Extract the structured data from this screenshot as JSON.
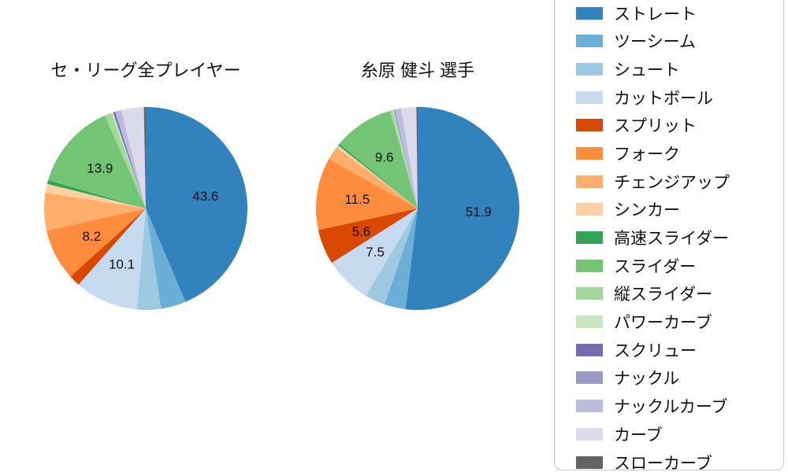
{
  "page": {
    "background": "#ffffff"
  },
  "chart_data": [
    {
      "type": "pie",
      "title": "セ・リーグ全プレイヤー",
      "start_angle_deg": 90,
      "direction": "clockwise",
      "pct_distance": 0.6,
      "categories": [
        "ストレート",
        "ツーシーム",
        "シュート",
        "カットボール",
        "スプリット",
        "フォーク",
        "チェンジアップ",
        "シンカー",
        "高速スライダー",
        "スライダー",
        "縦スライダー",
        "パワーカーブ",
        "スクリュー",
        "ナックル",
        "ナックルカーブ",
        "カーブ",
        "スローカーブ"
      ],
      "values": [
        43.6,
        4.0,
        3.8,
        10.1,
        1.8,
        8.2,
        6.0,
        1.4,
        0.6,
        13.9,
        1.1,
        0.3,
        0.3,
        0.1,
        0.9,
        3.6,
        0.3
      ],
      "value_labels": [
        "43.6",
        null,
        null,
        "10.1",
        null,
        "8.2",
        null,
        null,
        null,
        "13.9",
        null,
        null,
        null,
        null,
        null,
        null,
        null
      ]
    },
    {
      "type": "pie",
      "title": "糸原 健斗 選手",
      "start_angle_deg": 90,
      "direction": "clockwise",
      "pct_distance": 0.6,
      "categories": [
        "ストレート",
        "ツーシーム",
        "シュート",
        "カットボール",
        "スプリット",
        "フォーク",
        "チェンジアップ",
        "シンカー",
        "高速スライダー",
        "スライダー",
        "縦スライダー",
        "パワーカーブ",
        "スクリュー",
        "ナックル",
        "ナックルカーブ",
        "カーブ",
        "スローカーブ"
      ],
      "values": [
        51.9,
        3.4,
        3.2,
        7.5,
        5.6,
        11.5,
        2.2,
        0.4,
        0.3,
        9.6,
        0.4,
        0.2,
        0.1,
        0.1,
        1.0,
        2.4,
        0.2
      ],
      "value_labels": [
        "51.9",
        null,
        null,
        "7.5",
        "5.6",
        "11.5",
        null,
        null,
        null,
        "9.6",
        null,
        null,
        null,
        null,
        null,
        null,
        null
      ]
    }
  ],
  "legend": {
    "position": "right",
    "items": [
      {
        "label": "ストレート",
        "color": "#3182bd"
      },
      {
        "label": "ツーシーム",
        "color": "#6baed6"
      },
      {
        "label": "シュート",
        "color": "#9ecae1"
      },
      {
        "label": "カットボール",
        "color": "#c6dbef"
      },
      {
        "label": "スプリット",
        "color": "#d94801"
      },
      {
        "label": "フォーク",
        "color": "#fd8d3c"
      },
      {
        "label": "チェンジアップ",
        "color": "#fdae6b"
      },
      {
        "label": "シンカー",
        "color": "#fdd0a2"
      },
      {
        "label": "高速スライダー",
        "color": "#31a354"
      },
      {
        "label": "スライダー",
        "color": "#74c476"
      },
      {
        "label": "縦スライダー",
        "color": "#a1d99b"
      },
      {
        "label": "パワーカーブ",
        "color": "#c7e9c0"
      },
      {
        "label": "スクリュー",
        "color": "#756bb1"
      },
      {
        "label": "ナックル",
        "color": "#9e9ac8"
      },
      {
        "label": "ナックルカーブ",
        "color": "#bcbddc"
      },
      {
        "label": "カーブ",
        "color": "#dadaeb"
      },
      {
        "label": "スローカーブ",
        "color": "#636363"
      }
    ]
  }
}
